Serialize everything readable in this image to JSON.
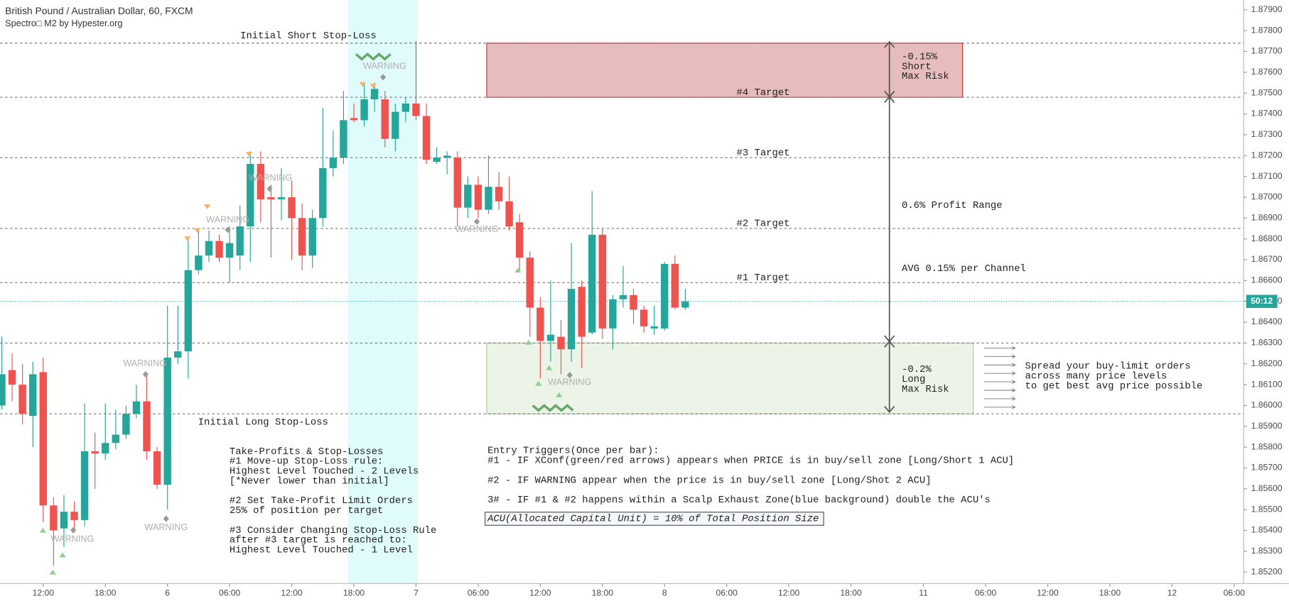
{
  "chart_data": {
    "type": "candlestick",
    "title": "British Pound / Australian Dollar, 60, FXCM",
    "subtitle": "Spectro□ M2 by Hypester.org",
    "up_color": "#26a69a",
    "down_color": "#ef5350",
    "open": [
      1.86,
      1.8617,
      1.861,
      1.8595,
      1.8616,
      1.8552,
      1.8541,
      1.8549,
      1.8545,
      1.8578,
      1.8577,
      1.8582,
      1.8586,
      1.8596,
      1.8602,
      1.8578,
      1.8562,
      1.8623,
      1.8626,
      1.8665,
      1.8672,
      1.8679,
      1.8671,
      1.8672,
      1.8686,
      1.8716,
      1.87,
      1.8699,
      1.87,
      1.869,
      1.8672,
      1.869,
      1.8714,
      1.8719,
      1.8738,
      1.8737,
      1.8747,
      1.8747,
      1.8728,
      1.8741,
      1.8745,
      1.8739,
      1.8717,
      1.8719,
      1.8719,
      1.8695,
      1.8706,
      1.8694,
      1.8705,
      1.8698,
      1.8688,
      1.8671,
      1.8647,
      1.8631,
      1.8633,
      1.8627,
      1.8657,
      1.8635,
      1.8682,
      1.8637,
      1.8651,
      1.8653,
      1.8646,
      1.8637,
      1.8637,
      1.8668,
      1.8647
    ],
    "high": [
      1.8633,
      1.8625,
      1.862,
      1.8621,
      1.8623,
      1.8556,
      1.8557,
      1.8554,
      1.8601,
      1.8587,
      1.8601,
      1.8598,
      1.86,
      1.861,
      1.8614,
      1.858,
      1.8648,
      1.8648,
      1.868,
      1.8684,
      1.8684,
      1.8682,
      1.8686,
      1.8696,
      1.8722,
      1.8722,
      1.8706,
      1.8714,
      1.8708,
      1.8697,
      1.8694,
      1.8743,
      1.8732,
      1.8751,
      1.8745,
      1.8755,
      1.8755,
      1.8751,
      1.8745,
      1.8748,
      1.8775,
      1.8745,
      1.8724,
      1.8722,
      1.8722,
      1.871,
      1.871,
      1.872,
      1.8712,
      1.871,
      1.8692,
      1.8674,
      1.8652,
      1.866,
      1.8641,
      1.8678,
      1.866,
      1.8703,
      1.8685,
      1.8653,
      1.8667,
      1.8656,
      1.8648,
      1.8648,
      1.8669,
      1.8672,
      1.8656
    ],
    "low": [
      1.8598,
      1.8602,
      1.8591,
      1.858,
      1.8544,
      1.8523,
      1.8532,
      1.8541,
      1.8542,
      1.856,
      1.8574,
      1.8579,
      1.8584,
      1.8594,
      1.8574,
      1.856,
      1.855,
      1.862,
      1.8613,
      1.8663,
      1.8669,
      1.8669,
      1.8659,
      1.8665,
      1.8669,
      1.8688,
      1.8671,
      1.8689,
      1.867,
      1.8665,
      1.8666,
      1.8686,
      1.871,
      1.8716,
      1.8736,
      1.8734,
      1.8741,
      1.8724,
      1.8722,
      1.8736,
      1.8737,
      1.8716,
      1.8716,
      1.8711,
      1.8686,
      1.869,
      1.869,
      1.8692,
      1.8694,
      1.8684,
      1.8665,
      1.8633,
      1.8613,
      1.8621,
      1.8615,
      1.8621,
      1.8618,
      1.8634,
      1.8632,
      1.8627,
      1.8647,
      1.8639,
      1.8635,
      1.8634,
      1.8636,
      1.8646,
      1.8646
    ],
    "close": [
      1.8615,
      1.861,
      1.8596,
      1.8615,
      1.8552,
      1.854,
      1.8549,
      1.8545,
      1.8578,
      1.8577,
      1.8582,
      1.8586,
      1.8596,
      1.8602,
      1.8578,
      1.8562,
      1.8623,
      1.8626,
      1.8665,
      1.8672,
      1.8679,
      1.8671,
      1.8678,
      1.8686,
      1.8716,
      1.8699,
      1.8699,
      1.87,
      1.869,
      1.8672,
      1.869,
      1.8714,
      1.8719,
      1.8737,
      1.8737,
      1.8747,
      1.8752,
      1.8728,
      1.8741,
      1.8745,
      1.8739,
      1.8718,
      1.8719,
      1.872,
      1.8695,
      1.8706,
      1.8694,
      1.8705,
      1.8698,
      1.8686,
      1.8671,
      1.8647,
      1.8631,
      1.8634,
      1.8627,
      1.8656,
      1.8633,
      1.8682,
      1.8637,
      1.8651,
      1.8653,
      1.8646,
      1.8638,
      1.8638,
      1.8668,
      1.8647,
      1.865
    ],
    "countdown": "50:12",
    "xlim": [
      -0.16,
      119.92
    ],
    "xticks": [
      {
        "value": 4,
        "label": "12:00"
      },
      {
        "value": 10,
        "label": "18:00"
      },
      {
        "value": 16,
        "label": "6"
      },
      {
        "value": 22,
        "label": "06:00"
      },
      {
        "value": 28,
        "label": "12:00"
      },
      {
        "value": 34,
        "label": "18:00"
      },
      {
        "value": 40,
        "label": "7"
      },
      {
        "value": 46,
        "label": "06:00"
      },
      {
        "value": 52,
        "label": "12:00"
      },
      {
        "value": 58,
        "label": "18:00"
      },
      {
        "value": 64,
        "label": "8"
      },
      {
        "value": 70,
        "label": "06:00"
      },
      {
        "value": 76,
        "label": "12:00"
      },
      {
        "value": 82,
        "label": "18:00"
      },
      {
        "value": 89,
        "label": "11"
      },
      {
        "value": 95,
        "label": "06:00"
      },
      {
        "value": 101,
        "label": "12:00"
      },
      {
        "value": 107,
        "label": "18:00"
      },
      {
        "value": 113,
        "label": "12"
      },
      {
        "value": 119,
        "label": "06:00"
      }
    ],
    "ylim": [
      1.85145,
      1.87947
    ],
    "yticks": [
      {
        "value": 1.852,
        "label": "1.85200"
      },
      {
        "value": 1.853,
        "label": "1.85300"
      },
      {
        "value": 1.854,
        "label": "1.85400"
      },
      {
        "value": 1.855,
        "label": "1.85500"
      },
      {
        "value": 1.856,
        "label": "1.85600"
      },
      {
        "value": 1.857,
        "label": "1.85700"
      },
      {
        "value": 1.858,
        "label": "1.85800"
      },
      {
        "value": 1.859,
        "label": "1.85900"
      },
      {
        "value": 1.86,
        "label": "1.86000"
      },
      {
        "value": 1.861,
        "label": "1.86100"
      },
      {
        "value": 1.862,
        "label": "1.86200"
      },
      {
        "value": 1.863,
        "label": "1.86300"
      },
      {
        "value": 1.864,
        "label": "1.86400"
      },
      {
        "value": 1.865,
        "label": "1.86500"
      },
      {
        "value": 1.866,
        "label": "1.86600"
      },
      {
        "value": 1.867,
        "label": "1.86700"
      },
      {
        "value": 1.868,
        "label": "1.86800"
      },
      {
        "value": 1.869,
        "label": "1.86900"
      },
      {
        "value": 1.87,
        "label": "1.87000"
      },
      {
        "value": 1.871,
        "label": "1.87100"
      },
      {
        "value": 1.872,
        "label": "1.87200"
      },
      {
        "value": 1.873,
        "label": "1.87300"
      },
      {
        "value": 1.874,
        "label": "1.87400"
      },
      {
        "value": 1.875,
        "label": "1.87500"
      },
      {
        "value": 1.876,
        "label": "1.87600"
      },
      {
        "value": 1.877,
        "label": "1.87700"
      },
      {
        "value": 1.878,
        "label": "1.87800"
      },
      {
        "value": 1.879,
        "label": "1.87900"
      }
    ],
    "levels": [
      {
        "label": "Initial Short Stop-Loss",
        "value": 1.8774
      },
      {
        "label": "#4 Target",
        "value": 1.8748
      },
      {
        "label": "#3 Target",
        "value": 1.8719
      },
      {
        "label": "#2 Target",
        "value": 1.8685
      },
      {
        "label": "#1 Target",
        "value": 1.8659
      },
      {
        "label": "Initial Long Stop-Loss",
        "value": 1.8596
      },
      {
        "value": 1.863
      }
    ],
    "warnings": [
      "WARNING",
      "WARNING",
      "WARNING",
      "WARNING",
      "WARNING",
      "WARNING",
      "WARNING",
      "WARNING"
    ],
    "short_zone_text": [
      "-0.15%",
      "Short",
      "Max Risk"
    ],
    "long_zone_text": [
      "-0.2%",
      "Long",
      "Max Risk"
    ],
    "profit_range": "0.6% Profit Range",
    "avg_channel": "AVG 0.15% per Channel",
    "spread_text": [
      "Spread your buy-limit orders",
      "across many price levels",
      "to get best avg price possible"
    ],
    "notes": {
      "heading": "Take-Profits & Stop-Losses",
      "rules": [
        [
          "#1 Move-up Stop-Loss rule:",
          "Highest Level Touched - 2 Levels",
          "[*Never lower than initial]"
        ],
        [
          "#2 Set Take-Profit Limit Orders",
          "25% of position per target"
        ],
        [
          "#3 Consider Changing Stop-Loss Rule",
          "after #3 target is reached to:",
          "Highest Level Touched - 1 Level"
        ]
      ]
    },
    "entry": {
      "heading": "Entry Triggers(Once per bar):",
      "rules": [
        "#1 - IF XConf(green/red arrows) appears when PRICE is in buy/sell zone [Long/Short 1 ACU]",
        "#2 - IF WARNING appear when the price is in buy/sell zone [Long/Shot 2 ACU]",
        "3# - IF #1 & #2 happens within a Scalp Exhaust Zone(blue background) double the ACU's"
      ],
      "acu": "ACU(Allocated Capital Unit) = 10% of Total Position Size"
    }
  }
}
